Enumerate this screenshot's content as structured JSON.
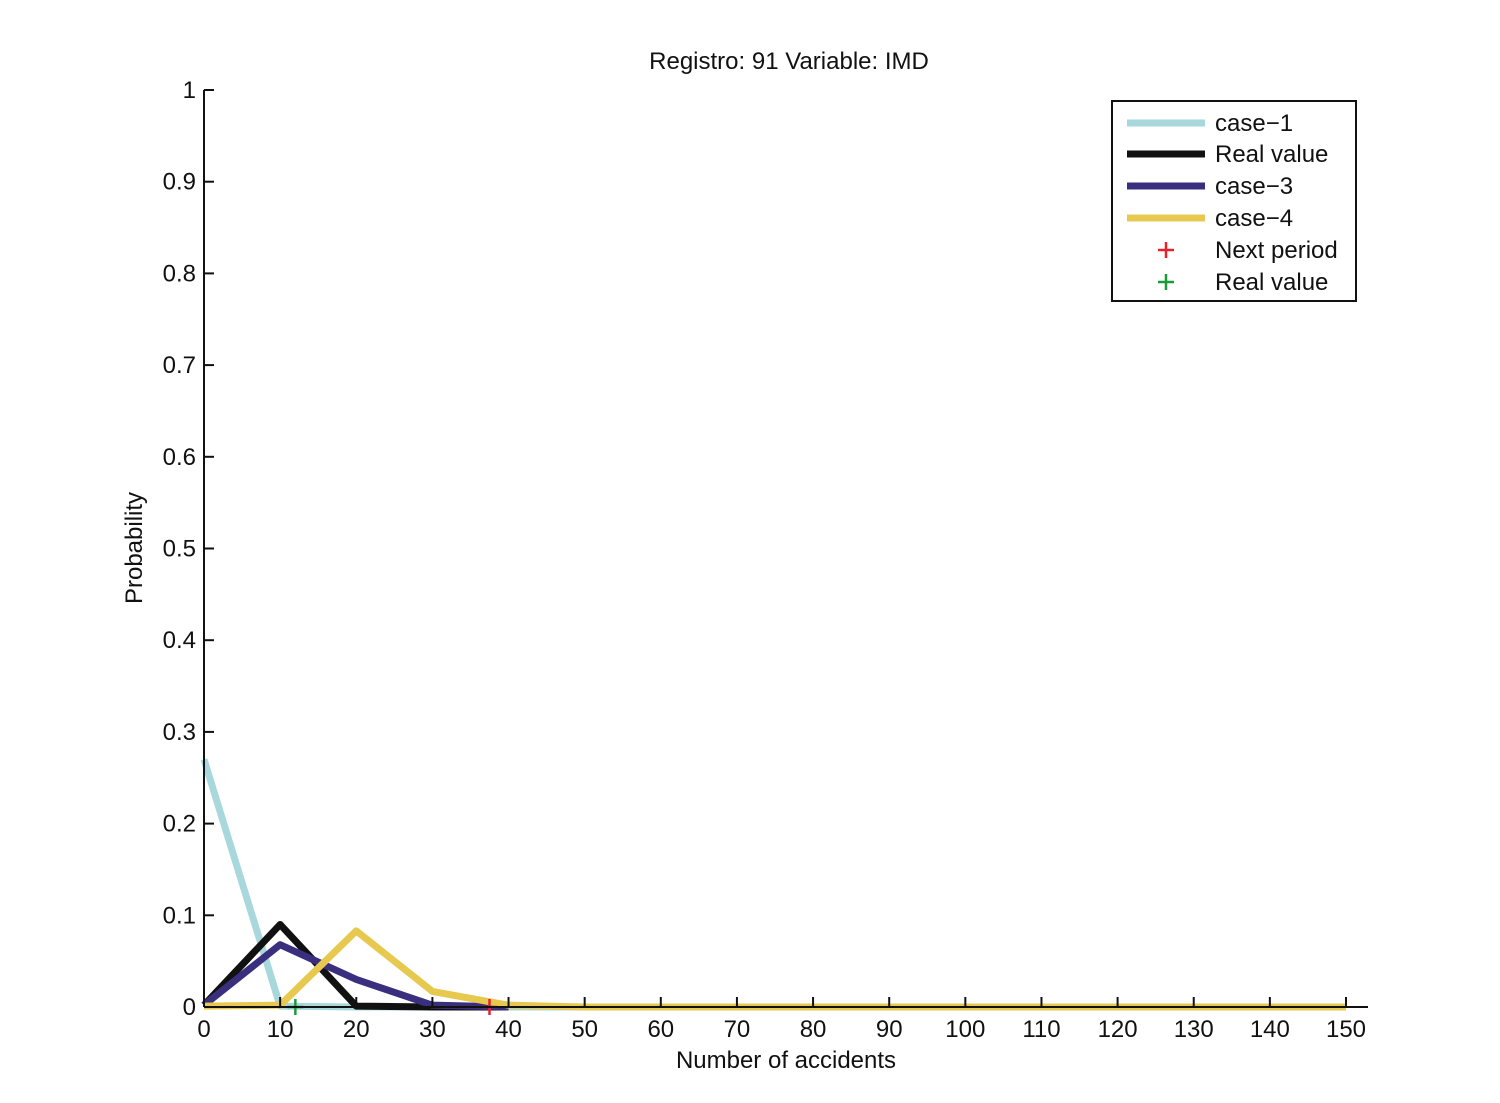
{
  "chart_data": {
    "type": "line",
    "title": "Registro: 91 Variable: IMD",
    "xlabel": "Number of accidents",
    "ylabel": "Probability",
    "xlim": [
      0,
      150
    ],
    "ylim": [
      0,
      1
    ],
    "xticks": [
      0,
      10,
      20,
      30,
      40,
      50,
      60,
      70,
      80,
      90,
      100,
      110,
      120,
      130,
      140,
      150
    ],
    "yticks": [
      0,
      0.1,
      0.2,
      0.3,
      0.4,
      0.5,
      0.6,
      0.7,
      0.8,
      0.9,
      1
    ],
    "grid": false,
    "legend_position": "top-right",
    "series": [
      {
        "name": "case−1",
        "color": "#a8d8dc",
        "x": [
          0,
          10,
          20,
          30,
          40,
          50,
          56
        ],
        "y": [
          0.27,
          0.001,
          0,
          0,
          0,
          0,
          0
        ]
      },
      {
        "name": "Real value",
        "color": "#111111",
        "x": [
          0,
          10,
          20,
          30,
          40
        ],
        "y": [
          0.002,
          0.09,
          0.001,
          0,
          0
        ]
      },
      {
        "name": "case−3",
        "color": "#3a2f7f",
        "x": [
          0,
          10,
          20,
          30,
          40
        ],
        "y": [
          0.002,
          0.068,
          0.03,
          0.002,
          0
        ]
      },
      {
        "name": "case−4",
        "color": "#e7c94f",
        "x": [
          0,
          10,
          20,
          30,
          40,
          50,
          60,
          70,
          80,
          90,
          100,
          110,
          120,
          130,
          140,
          150
        ],
        "y": [
          0.001,
          0.002,
          0.083,
          0.017,
          0.002,
          0,
          0,
          0,
          0,
          0,
          0,
          0,
          0,
          0,
          0,
          0
        ]
      }
    ],
    "markers": [
      {
        "name": "Next period",
        "color": "#e8202a",
        "x": 37.5,
        "y": 0
      },
      {
        "name": "Real value",
        "color": "#1a9a3a",
        "x": 12,
        "y": 0
      }
    ]
  }
}
